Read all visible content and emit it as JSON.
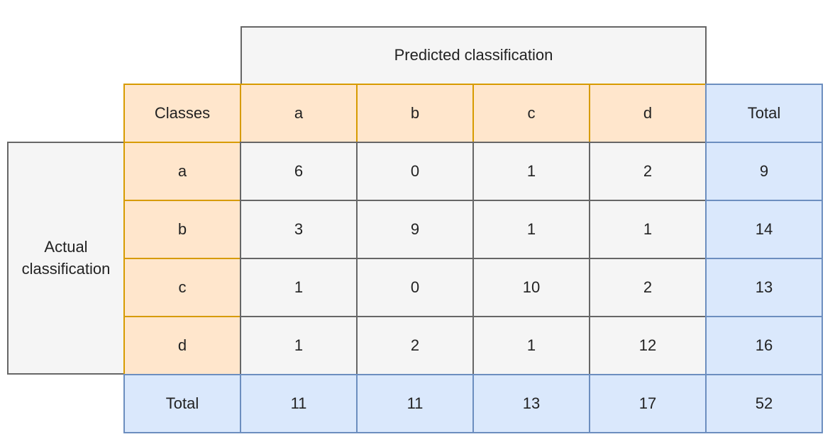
{
  "predicted_label": "Predicted classification",
  "actual_label": "Actual\nclassification",
  "corner_label": "Classes",
  "total_label": "Total",
  "classes": [
    "a",
    "b",
    "c",
    "d"
  ],
  "matrix": [
    [
      6,
      0,
      1,
      2
    ],
    [
      3,
      9,
      1,
      1
    ],
    [
      1,
      0,
      10,
      2
    ],
    [
      1,
      2,
      1,
      12
    ]
  ],
  "row_totals": [
    9,
    14,
    13,
    16
  ],
  "col_totals": [
    11,
    11,
    13,
    17
  ],
  "grand_total": 52,
  "colors": {
    "gray_fill": "#f5f5f5",
    "gray_stroke": "#666666",
    "orange_fill": "#ffe6cc",
    "orange_stroke": "#d79b00",
    "blue_fill": "#dae8fc",
    "blue_stroke": "#6c8ebf"
  }
}
